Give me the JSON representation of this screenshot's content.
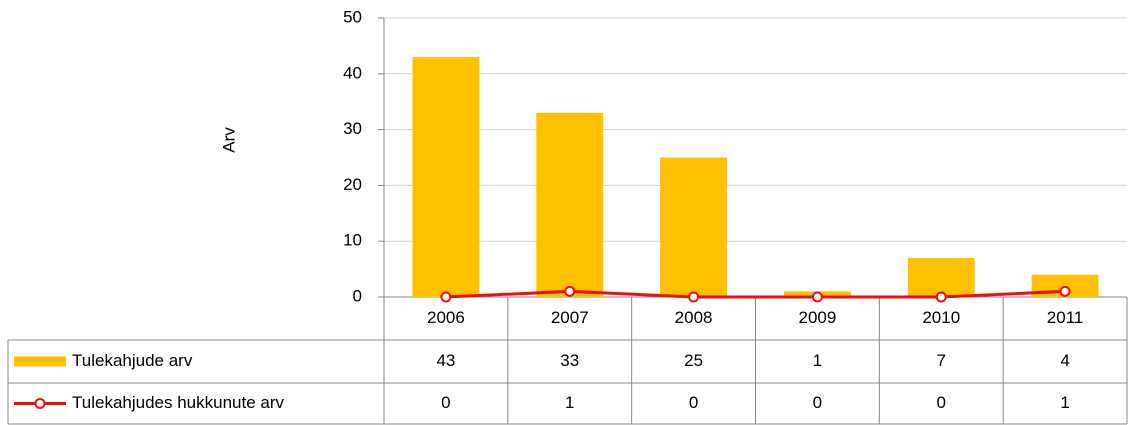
{
  "chart_data": {
    "type": "bar",
    "ylabel": "Arv",
    "categories": [
      "2006",
      "2007",
      "2008",
      "2009",
      "2010",
      "2011"
    ],
    "series": [
      {
        "name": "Tulekahjude arv",
        "type": "bar",
        "color": "#ffc000",
        "values": [
          43,
          33,
          25,
          1,
          7,
          4
        ]
      },
      {
        "name": "Tulekahjudes hukkunute arv",
        "type": "line",
        "color": "#e81010",
        "values": [
          0,
          1,
          0,
          0,
          0,
          1
        ]
      }
    ],
    "ylim": [
      0,
      50
    ],
    "yticks": [
      0,
      10,
      20,
      30,
      40,
      50
    ],
    "grid": true
  }
}
